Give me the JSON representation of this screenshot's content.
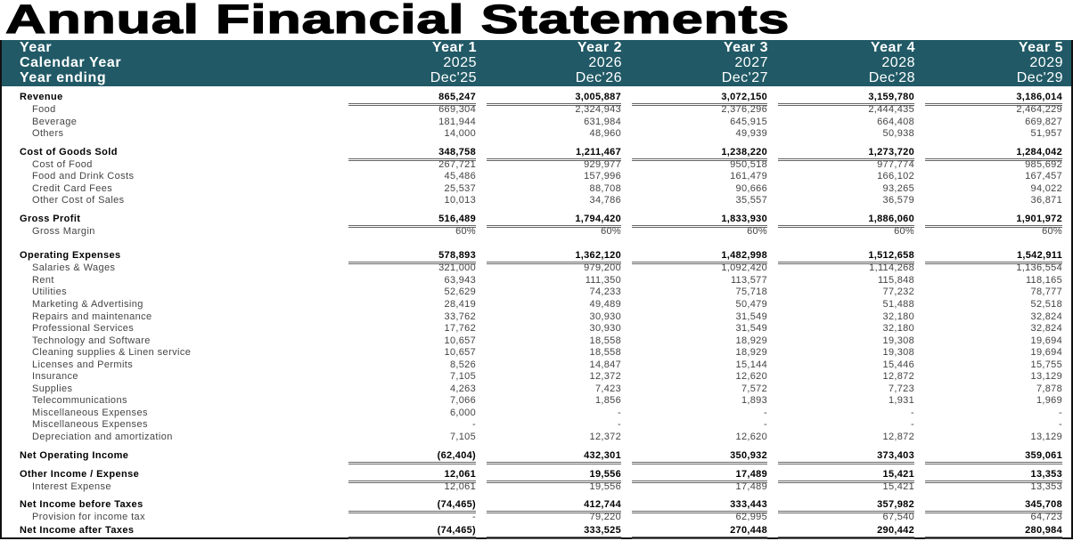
{
  "title": "Annual Financial Statements",
  "colors": {
    "header_bg": "#215a66",
    "header_text": "#ffffff"
  },
  "header": {
    "rows": [
      {
        "label": "Year",
        "values": [
          "Year 1",
          "Year 2",
          "Year 3",
          "Year 4",
          "Year 5"
        ]
      },
      {
        "label": "Calendar Year",
        "values": [
          "2025",
          "2026",
          "2027",
          "2028",
          "2029"
        ]
      },
      {
        "label": "Year ending",
        "values": [
          "Dec'25",
          "Dec'26",
          "Dec'27",
          "Dec'28",
          "Dec'29"
        ]
      }
    ]
  },
  "sections": [
    {
      "header": {
        "label": "Revenue",
        "values": [
          "865,247",
          "3,005,887",
          "3,072,150",
          "3,159,780",
          "3,186,014"
        ]
      },
      "items": [
        {
          "label": "Food",
          "values": [
            "669,304",
            "2,324,943",
            "2,376,296",
            "2,444,435",
            "2,464,229"
          ]
        },
        {
          "label": "Beverage",
          "values": [
            "181,944",
            "631,984",
            "645,915",
            "664,408",
            "669,827"
          ]
        },
        {
          "label": "Others",
          "values": [
            "14,000",
            "48,960",
            "49,939",
            "50,938",
            "51,957"
          ]
        }
      ]
    },
    {
      "header": {
        "label": "Cost of Goods Sold",
        "values": [
          "348,758",
          "1,211,467",
          "1,238,220",
          "1,273,720",
          "1,284,042"
        ]
      },
      "items": [
        {
          "label": "Cost of Food",
          "values": [
            "267,721",
            "929,977",
            "950,518",
            "977,774",
            "985,692"
          ]
        },
        {
          "label": "Food and Drink Costs",
          "values": [
            "45,486",
            "157,996",
            "161,479",
            "166,102",
            "167,457"
          ]
        },
        {
          "label": "Credit Card Fees",
          "values": [
            "25,537",
            "88,708",
            "90,666",
            "93,265",
            "94,022"
          ]
        },
        {
          "label": "Other  Cost of Sales",
          "values": [
            "10,013",
            "34,786",
            "35,557",
            "36,579",
            "36,871"
          ]
        }
      ]
    },
    {
      "header": {
        "label": "Gross Profit",
        "values": [
          "516,489",
          "1,794,420",
          "1,833,930",
          "1,886,060",
          "1,901,972"
        ]
      },
      "items": [
        {
          "label": "Gross Margin",
          "values": [
            "60%",
            "60%",
            "60%",
            "60%",
            "60%"
          ]
        }
      ]
    },
    {
      "header": {
        "label": "Operating Expenses",
        "values": [
          "578,893",
          "1,362,120",
          "1,482,998",
          "1,512,658",
          "1,542,911"
        ]
      },
      "items": [
        {
          "label": "Salaries & Wages",
          "values": [
            "321,000",
            "979,200",
            "1,092,420",
            "1,114,268",
            "1,136,554"
          ]
        },
        {
          "label": "Rent",
          "values": [
            "63,943",
            "111,350",
            "113,577",
            "115,848",
            "118,165"
          ]
        },
        {
          "label": "Utilities",
          "values": [
            "52,629",
            "74,233",
            "75,718",
            "77,232",
            "78,777"
          ]
        },
        {
          "label": "Marketing & Advertising",
          "values": [
            "28,419",
            "49,489",
            "50,479",
            "51,488",
            "52,518"
          ]
        },
        {
          "label": "Repairs and maintenance",
          "values": [
            "33,762",
            "30,930",
            "31,549",
            "32,180",
            "32,824"
          ]
        },
        {
          "label": "Professional Services",
          "values": [
            "17,762",
            "30,930",
            "31,549",
            "32,180",
            "32,824"
          ]
        },
        {
          "label": "Technology and Software",
          "values": [
            "10,657",
            "18,558",
            "18,929",
            "19,308",
            "19,694"
          ]
        },
        {
          "label": "Cleaning supplies & Linen service",
          "values": [
            "10,657",
            "18,558",
            "18,929",
            "19,308",
            "19,694"
          ]
        },
        {
          "label": "Licenses and Permits",
          "values": [
            "8,526",
            "14,847",
            "15,144",
            "15,446",
            "15,755"
          ]
        },
        {
          "label": "Insurance",
          "values": [
            "7,105",
            "12,372",
            "12,620",
            "12,872",
            "13,129"
          ]
        },
        {
          "label": "Supplies",
          "values": [
            "4,263",
            "7,423",
            "7,572",
            "7,723",
            "7,878"
          ]
        },
        {
          "label": "Telecommunications",
          "values": [
            "7,066",
            "1,856",
            "1,893",
            "1,931",
            "1,969"
          ]
        },
        {
          "label": "Miscellaneous Expenses",
          "values": [
            "6,000",
            "-",
            "-",
            "-",
            "-"
          ]
        },
        {
          "label": "Miscellaneous Expenses",
          "values": [
            "-",
            "-",
            "-",
            "-",
            "-"
          ]
        },
        {
          "label": "Depreciation and amortization",
          "values": [
            "7,105",
            "12,372",
            "12,620",
            "12,872",
            "13,129"
          ]
        }
      ]
    },
    {
      "header": {
        "label": "Net Operating Income",
        "values": [
          "(62,404)",
          "432,301",
          "350,932",
          "373,403",
          "359,061"
        ]
      },
      "items": []
    },
    {
      "header": {
        "label": "Other Income / Expense",
        "values": [
          "12,061",
          "19,556",
          "17,489",
          "15,421",
          "13,353"
        ]
      },
      "items": [
        {
          "label": "Interest Expense",
          "values": [
            "12,061",
            "19,556",
            "17,489",
            "15,421",
            "13,353"
          ]
        }
      ]
    },
    {
      "header": {
        "label": "Net Income before Taxes",
        "values": [
          "(74,465)",
          "412,744",
          "333,443",
          "357,982",
          "345,708"
        ]
      },
      "items": [
        {
          "label": "Provision for income tax",
          "values": [
            "-",
            "79,220",
            "62,995",
            "67,540",
            "64,723"
          ]
        }
      ]
    },
    {
      "header": {
        "label": "Net Income after Taxes",
        "values": [
          "(74,465)",
          "333,525",
          "270,448",
          "290,442",
          "280,984"
        ]
      },
      "items": []
    }
  ]
}
